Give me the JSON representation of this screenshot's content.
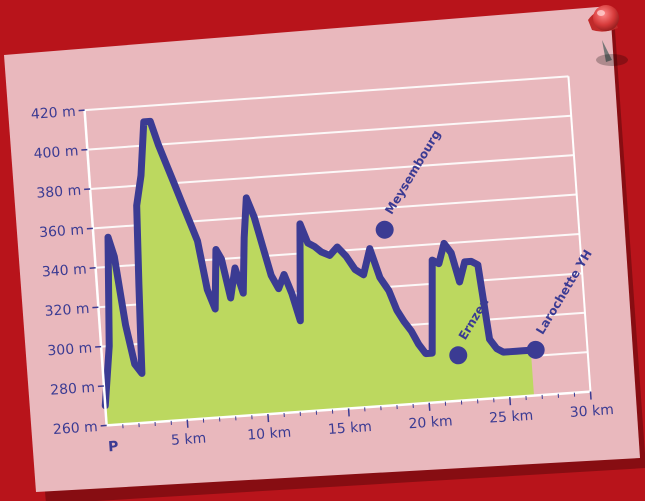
{
  "chart_data": {
    "type": "area",
    "title": "",
    "xlabel": "",
    "ylabel": "",
    "xlim": [
      0,
      30
    ],
    "ylim": [
      260,
      420
    ],
    "x_ticks": [
      5,
      10,
      15,
      20,
      25,
      30
    ],
    "x_tick_labels": [
      "5 km",
      "10 km",
      "15 km",
      "20 km",
      "25 km",
      "30 km"
    ],
    "y_ticks": [
      260,
      280,
      300,
      320,
      340,
      360,
      380,
      400,
      420
    ],
    "y_tick_labels": [
      "260 m",
      "280 m",
      "300 m",
      "320 m",
      "340 m",
      "360 m",
      "380 m",
      "400 m",
      "420 m"
    ],
    "start_label": "P",
    "grid": true,
    "colors": {
      "line": "#3b3b93",
      "fill": "#bcd85f",
      "card": "#e9b8bd",
      "background": "#b8141b",
      "pin": "#d63a3a"
    },
    "series": [
      {
        "x": [
          0,
          0.5,
          0.9,
          1.2,
          1.6,
          2.0,
          2.4,
          2.6,
          2.8,
          3.2,
          3.6,
          4.0,
          4.4,
          4.8,
          5.2,
          5.6,
          6.0,
          6.4,
          6.8,
          7.2,
          7.5,
          7.8,
          8.2,
          8.6,
          9.0,
          9.3,
          9.6,
          10.0,
          10.4,
          10.8,
          11.2,
          11.6,
          12.0,
          12.4,
          12.8,
          13.2,
          13.6,
          14.0,
          14.5,
          15.0,
          15.5,
          16.0,
          16.5,
          17.0,
          17.5,
          18.0,
          18.4,
          18.8,
          19.2,
          19.6,
          20.0,
          20.4,
          20.8,
          21.2,
          21.6,
          22.0,
          22.4,
          22.8,
          23.2,
          23.6,
          24.0,
          24.4,
          24.8,
          25.2,
          25.6,
          26.0,
          26.5
        ],
        "y": [
          270,
          300,
          355,
          345,
          310,
          290,
          285,
          330,
          370,
          385,
          412,
          412,
          400,
          390,
          380,
          370,
          360,
          350,
          325,
          315,
          345,
          340,
          320,
          335,
          322,
          350,
          370,
          360,
          345,
          330,
          323,
          330,
          320,
          306,
          355,
          345,
          343,
          340,
          338,
          342,
          337,
          330,
          327,
          340,
          325,
          318,
          308,
          302,
          297,
          290,
          285,
          285,
          332,
          330,
          340,
          335,
          320,
          330,
          330,
          328,
          290,
          285,
          283,
          283,
          283,
          283,
          283
        ]
      }
    ],
    "points_of_interest": [
      {
        "label": "Meysembourg",
        "x": 18.0,
        "y": 349
      },
      {
        "label": "Ernzen",
        "x": 22.0,
        "y": 283
      },
      {
        "label": "Larochette YH",
        "x": 26.8,
        "y": 283
      }
    ]
  }
}
